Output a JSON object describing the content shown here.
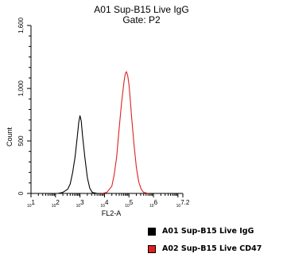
{
  "chart_data": {
    "type": "line",
    "title": "A01 Sup-B15 Live IgG",
    "subtitle": "Gate: P2",
    "xlabel": "FL2-A",
    "ylabel": "Count",
    "xscale": "log",
    "xlim": [
      1,
      7.2
    ],
    "ylim": [
      0,
      1600
    ],
    "x_ticks": [
      {
        "value": 1,
        "label": "10^1"
      },
      {
        "value": 2,
        "label": "10^2"
      },
      {
        "value": 3,
        "label": "10^3"
      },
      {
        "value": 4,
        "label": "10^4"
      },
      {
        "value": 5,
        "label": "10^5"
      },
      {
        "value": 6,
        "label": "10^6"
      },
      {
        "value": 7.2,
        "label": "10^7.2"
      }
    ],
    "y_ticks": [
      {
        "value": 0,
        "label": "0"
      },
      {
        "value": 500,
        "label": "500"
      },
      {
        "value": 1000,
        "label": "1,000"
      },
      {
        "value": 1600,
        "label": "1,600"
      }
    ],
    "grid": false,
    "legend_position": "bottom-right",
    "series": [
      {
        "name": "A01 Sup-B15 Live IgG",
        "color": "#000000",
        "x": [
          2.1,
          2.3,
          2.5,
          2.6,
          2.7,
          2.8,
          2.9,
          2.95,
          3.0,
          3.05,
          3.1,
          3.2,
          3.3,
          3.4,
          3.5,
          3.7
        ],
        "y": [
          0,
          10,
          40,
          90,
          200,
          350,
          560,
          680,
          740,
          690,
          560,
          340,
          150,
          50,
          10,
          0
        ]
      },
      {
        "name": "A02 Sup-B15 Live CD47",
        "color": "#e02020",
        "x": [
          3.9,
          4.1,
          4.3,
          4.4,
          4.5,
          4.6,
          4.7,
          4.8,
          4.85,
          4.9,
          4.95,
          5.0,
          5.05,
          5.1,
          5.2,
          5.3,
          5.4,
          5.5,
          5.6,
          5.8
        ],
        "y": [
          0,
          10,
          70,
          180,
          350,
          620,
          870,
          1070,
          1140,
          1160,
          1120,
          1040,
          900,
          750,
          480,
          250,
          110,
          40,
          10,
          0
        ]
      }
    ]
  }
}
